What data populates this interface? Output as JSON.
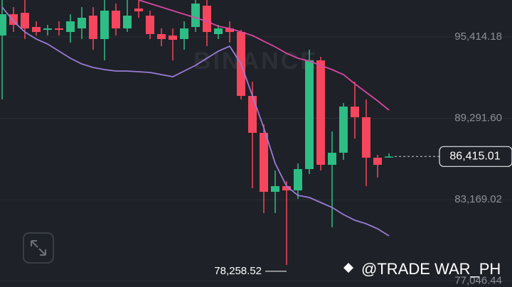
{
  "chart_data": {
    "type": "candlestick",
    "ylim": [
      76593,
      98195
    ],
    "yticks": [
      {
        "value": 95414.18,
        "label": "95,414.18"
      },
      {
        "value": 89291.6,
        "label": "89,291.60"
      },
      {
        "value": 83169.02,
        "label": "83,169.02"
      },
      {
        "value": 77046.44,
        "label": "77,046.44"
      }
    ],
    "grid": true,
    "up_color": "#2ebd85",
    "down_color": "#f6465d",
    "open": [
      95521,
      97125,
      97232,
      96163,
      95949,
      96056,
      95788,
      96056,
      97018,
      95254,
      97393,
      96056,
      97553,
      97018,
      95628,
      95521,
      95254,
      96163,
      97767,
      95628,
      96056,
      95788,
      90976,
      88196,
      83758,
      84186,
      83864,
      85469,
      93650,
      85789,
      86698,
      90174,
      89372,
      86324,
      86378
    ],
    "high": [
      98195,
      97660,
      98195,
      96591,
      96323,
      96591,
      97125,
      97660,
      97660,
      98195,
      97927,
      98195,
      98195,
      97393,
      96056,
      96056,
      96591,
      98195,
      98195,
      96323,
      96591,
      95949,
      92046,
      88837,
      85362,
      84560,
      85896,
      94452,
      93917,
      88303,
      90441,
      92046,
      90709,
      86538,
      86645
    ],
    "low": [
      90709,
      95788,
      95254,
      95521,
      95521,
      95521,
      94987,
      95254,
      94452,
      93650,
      95521,
      95788,
      96858,
      95254,
      94719,
      93650,
      94452,
      95788,
      94719,
      95254,
      94987,
      90709,
      84025,
      82154,
      82154,
      78258.52,
      83223,
      85095,
      85362,
      81084,
      86164,
      87768,
      84186,
      84827,
      86324
    ],
    "close": [
      97125,
      96323,
      96056,
      95788,
      96056,
      95949,
      96591,
      96858,
      95254,
      97393,
      96056,
      97018,
      97339,
      95628,
      95254,
      95200,
      96056,
      97927,
      95788,
      96056,
      95788,
      90976,
      88196,
      83758,
      84186,
      83864,
      85469,
      93650,
      85789,
      86698,
      90174,
      89372,
      86324,
      85789,
      86415.01
    ],
    "ma_lines": [
      {
        "color": "#d6489f",
        "values": [
          null,
          null,
          null,
          null,
          null,
          null,
          null,
          null,
          null,
          null,
          null,
          null,
          98195,
          97927,
          97660,
          97393,
          97125,
          96858,
          96591,
          96216,
          96056,
          95788,
          95521,
          95093,
          94666,
          94184,
          93810,
          93596,
          93275,
          92955,
          92580,
          91885,
          91243,
          90602,
          89907
        ]
      },
      {
        "color": "#9a7bd6",
        "values": [
          97660,
          96591,
          95788,
          95254,
          94879,
          94345,
          93810,
          93382,
          93115,
          92955,
          92848,
          92848,
          92794,
          92741,
          92580,
          92420,
          92848,
          93275,
          93810,
          94345,
          94719,
          93382,
          90976,
          88570,
          85896,
          84186,
          83490,
          83330,
          82956,
          82582,
          82047,
          81619,
          81352,
          80978,
          80443
        ]
      }
    ],
    "low_annotation": {
      "label": "78,258.52"
    },
    "last_price": {
      "value": 86415.01,
      "label": "86,415.01"
    }
  },
  "watermark": "@TRADE WAR_PH",
  "logo_watermark": "BINANCE"
}
